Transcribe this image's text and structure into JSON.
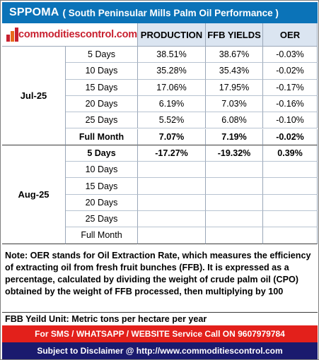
{
  "title": {
    "main": "SPPOMA",
    "sub": "( South Peninsular Mills Palm Oil Performance )"
  },
  "logo": {
    "text": "commoditiescontrol.com"
  },
  "headers": [
    "PRODUCTION",
    "FFB YIELDS",
    "OER"
  ],
  "months": [
    {
      "label": "Jul-25",
      "rows": [
        {
          "period": "5 Days",
          "production": "38.51%",
          "ffb": "38.67%",
          "oer": "-0.03%",
          "bold": false
        },
        {
          "period": "10 Days",
          "production": "35.28%",
          "ffb": "35.43%",
          "oer": "-0.02%",
          "bold": false
        },
        {
          "period": "15 Days",
          "production": "17.06%",
          "ffb": "17.95%",
          "oer": "-0.17%",
          "bold": false
        },
        {
          "period": "20 Days",
          "production": "6.19%",
          "ffb": "7.03%",
          "oer": "-0.16%",
          "bold": false
        },
        {
          "period": "25 Days",
          "production": "5.52%",
          "ffb": "6.08%",
          "oer": "-0.10%",
          "bold": false
        },
        {
          "period": "Full Month",
          "production": "7.07%",
          "ffb": "7.19%",
          "oer": "-0.02%",
          "bold": true
        }
      ]
    },
    {
      "label": "Aug-25",
      "rows": [
        {
          "period": "5 Days",
          "production": "-17.27%",
          "ffb": "-19.32%",
          "oer": "0.39%",
          "bold": true
        },
        {
          "period": "10 Days",
          "production": "",
          "ffb": "",
          "oer": "",
          "bold": false
        },
        {
          "period": "15 Days",
          "production": "",
          "ffb": "",
          "oer": "",
          "bold": false
        },
        {
          "period": "20 Days",
          "production": "",
          "ffb": "",
          "oer": "",
          "bold": false
        },
        {
          "period": "25 Days",
          "production": "",
          "ffb": "",
          "oer": "",
          "bold": false
        },
        {
          "period": "Full Month",
          "production": "",
          "ffb": "",
          "oer": "",
          "bold": false
        }
      ]
    }
  ],
  "note": "Note: OER stands for Oil Extraction Rate, which measures the efficiency of extracting oil from fresh fruit bunches (FFB). It is expressed as a percentage, calculated by dividing the weight of crude palm oil (CPO) obtained by the weight of FFB processed, then multiplying by 100",
  "unit_note": "FBB Yeild Unit: Metric tons per hectare per year",
  "sms_banner": "For SMS / WHATSAPP / WEBSITE Service Call  ON  9607979784",
  "disclaimer": "Subject to Disclaimer @  http://www.commoditiescontrol.com",
  "colors": {
    "title_bg": "#0b73b8",
    "header_bg": "#dbe5f1",
    "logo_red": "#c8202f",
    "sms_bg": "#e3201b",
    "disclaimer_bg": "#1a1a6e"
  }
}
